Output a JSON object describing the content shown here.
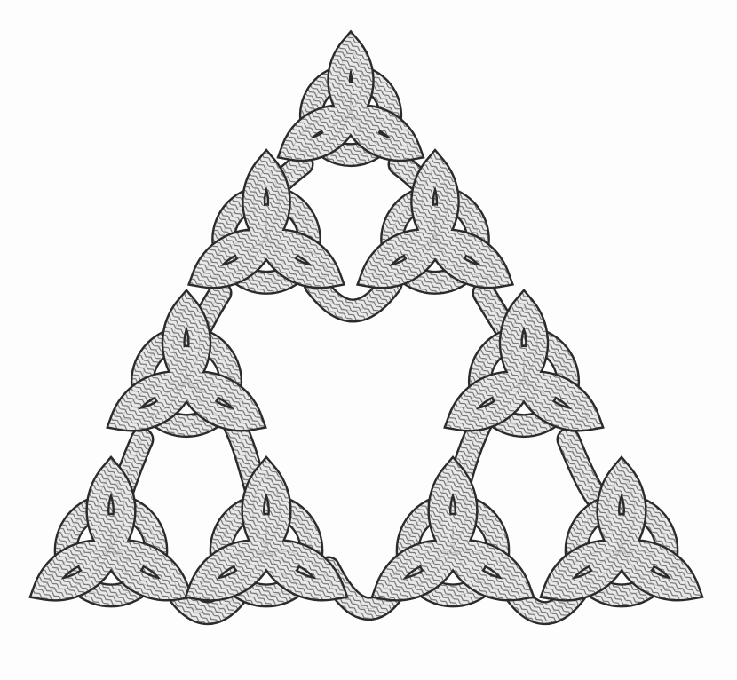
{
  "artwork": {
    "subject": "braided-rope-celtic-knot",
    "colors": {
      "background": "#fdfdfd",
      "rope_outline": "#2b2b2b",
      "rope_fill": "#e6e6e6",
      "braid_hatching": "#555555"
    },
    "levels": 3,
    "triquetra_count": 9
  }
}
